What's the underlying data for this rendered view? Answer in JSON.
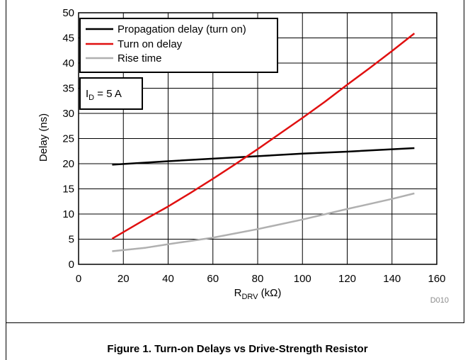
{
  "figure": {
    "caption": "Figure 1. Turn-on Delays vs Drive-Strength Resistor",
    "code": "D010"
  },
  "chart_data": {
    "type": "line",
    "ylabel": "Delay (ns)",
    "xlabel_main": "R",
    "xlabel_sub": "DRV",
    "xlabel_unit": " (kΩ)",
    "xlim": [
      0,
      160
    ],
    "ylim": [
      0,
      50
    ],
    "xticks": [
      0,
      20,
      40,
      60,
      80,
      100,
      120,
      140,
      160
    ],
    "yticks": [
      0,
      5,
      10,
      15,
      20,
      25,
      30,
      35,
      40,
      45,
      50
    ],
    "grid": true,
    "legend_position": "top-left",
    "annotation": {
      "main": "I",
      "sub": "D",
      "rest": " = 5 A"
    },
    "series": [
      {
        "name": "Propagation delay (turn on)",
        "color": "#000000",
        "x": [
          15,
          40,
          60,
          80,
          100,
          120,
          150
        ],
        "y": [
          19.8,
          20.5,
          21.0,
          21.5,
          22.0,
          22.4,
          23.1
        ]
      },
      {
        "name": "Turn on delay",
        "color": "#e01010",
        "x": [
          15,
          30,
          40,
          50,
          60,
          70,
          80,
          90,
          100,
          110,
          120,
          130,
          140,
          150
        ],
        "y": [
          5.1,
          9.0,
          11.5,
          14.2,
          17.0,
          19.9,
          22.9,
          26.0,
          29.1,
          32.3,
          35.7,
          39.0,
          42.4,
          45.9
        ]
      },
      {
        "name": "Rise time",
        "color": "#b0b0b0",
        "x": [
          15,
          30,
          40,
          60,
          80,
          100,
          120,
          140,
          150
        ],
        "y": [
          2.6,
          3.3,
          4.0,
          5.3,
          7.0,
          8.9,
          11.0,
          13.0,
          14.1
        ]
      }
    ]
  }
}
